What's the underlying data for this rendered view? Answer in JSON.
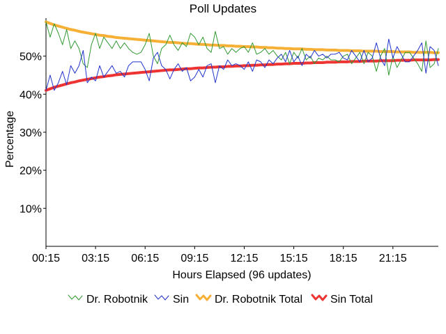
{
  "chart_data": {
    "type": "line",
    "title": "Poll Updates",
    "xlabel": "Hours Elapsed (96 updates)",
    "ylabel": "Percentage",
    "ylim": [
      0,
      60
    ],
    "yticks": [
      10,
      20,
      30,
      40,
      50
    ],
    "ytick_labels": [
      "10%",
      "20%",
      "30%",
      "40%",
      "50%"
    ],
    "xticks": [
      0,
      12,
      24,
      36,
      48,
      60,
      72,
      84
    ],
    "xtick_labels": [
      "00:15",
      "03:15",
      "06:15",
      "09:15",
      "12:15",
      "15:15",
      "18:15",
      "21:15"
    ],
    "xlim": [
      0,
      95
    ],
    "grid": false,
    "legend_position": "bottom",
    "series": [
      {
        "name": "Dr. Robotnik",
        "color": "#339933",
        "style": "thin",
        "values": [
          59.0,
          55.0,
          58.5,
          56.0,
          53.0,
          57.0,
          52.0,
          54.0,
          52.0,
          48.0,
          47.0,
          53.0,
          56.0,
          52.0,
          55.0,
          53.5,
          52.0,
          54.0,
          52.0,
          53.5,
          52.0,
          51.0,
          50.5,
          51.0,
          53.0,
          56.0,
          50.0,
          48.0,
          52.0,
          53.0,
          55.5,
          53.0,
          51.5,
          53.5,
          52.5,
          56.0,
          55.0,
          53.0,
          55.0,
          52.0,
          51.0,
          56.5,
          52.0,
          52.5,
          50.5,
          52.0,
          51.0,
          52.0,
          52.5,
          51.0,
          53.5,
          50.5,
          51.0,
          52.0,
          50.5,
          51.5,
          50.0,
          49.0,
          51.0,
          48.0,
          51.0,
          49.5,
          52.0,
          49.0,
          50.0,
          48.0,
          49.5,
          49.0,
          50.0,
          49.0,
          49.0,
          48.5,
          50.0,
          50.5,
          48.0,
          49.5,
          51.0,
          48.0,
          51.0,
          50.0,
          46.0,
          50.0,
          52.0,
          45.0,
          50.0,
          47.0,
          49.0,
          51.0,
          51.0,
          49.5,
          48.0,
          46.0,
          54.0,
          47.0,
          48.0,
          52.0
        ]
      },
      {
        "name": "Sin",
        "color": "#2233cc",
        "style": "thin",
        "values": [
          41.0,
          45.0,
          41.0,
          43.0,
          46.0,
          42.5,
          47.5,
          45.5,
          47.5,
          51.5,
          43.0,
          44.5,
          43.5,
          47.5,
          44.5,
          46.0,
          47.5,
          45.5,
          46.0,
          44.5,
          47.5,
          48.5,
          48.5,
          48.5,
          46.5,
          43.5,
          49.5,
          51.0,
          47.5,
          46.5,
          44.0,
          46.5,
          48.0,
          46.0,
          47.0,
          43.5,
          44.5,
          46.5,
          44.5,
          47.5,
          48.0,
          43.0,
          47.5,
          46.5,
          49.0,
          47.5,
          48.0,
          47.5,
          46.5,
          48.5,
          46.0,
          49.0,
          48.5,
          47.0,
          49.0,
          48.0,
          49.5,
          50.5,
          48.5,
          51.5,
          48.5,
          50.0,
          47.5,
          50.5,
          49.5,
          51.5,
          50.0,
          50.5,
          49.5,
          50.5,
          50.5,
          51.0,
          49.5,
          49.0,
          51.5,
          50.0,
          48.5,
          51.5,
          48.5,
          49.5,
          53.5,
          49.5,
          47.5,
          54.5,
          49.5,
          52.5,
          50.5,
          48.5,
          48.5,
          50.0,
          51.5,
          53.5,
          45.5,
          52.5,
          51.5,
          47.5
        ]
      },
      {
        "name": "Dr. Robotnik Total",
        "color": "#f5b035",
        "style": "thick",
        "values": [
          59.0,
          58.6,
          58.2,
          57.9,
          57.6,
          57.3,
          57.0,
          56.8,
          56.5,
          56.3,
          56.1,
          55.9,
          55.7,
          55.5,
          55.4,
          55.2,
          55.1,
          54.9,
          54.8,
          54.7,
          54.6,
          54.5,
          54.4,
          54.3,
          54.2,
          54.1,
          54.0,
          53.9,
          53.8,
          53.7,
          53.6,
          53.6,
          53.5,
          53.4,
          53.3,
          53.3,
          53.2,
          53.1,
          53.1,
          53.0,
          52.9,
          52.9,
          52.8,
          52.8,
          52.7,
          52.7,
          52.6,
          52.6,
          52.5,
          52.5,
          52.4,
          52.4,
          52.3,
          52.3,
          52.2,
          52.2,
          52.1,
          52.1,
          52.0,
          52.0,
          51.9,
          51.9,
          51.9,
          51.8,
          51.8,
          51.7,
          51.7,
          51.7,
          51.6,
          51.6,
          51.6,
          51.5,
          51.5,
          51.5,
          51.4,
          51.4,
          51.4,
          51.3,
          51.3,
          51.3,
          51.3,
          51.2,
          51.2,
          51.2,
          51.2,
          51.1,
          51.1,
          51.1,
          51.1,
          51.0,
          51.0,
          51.0,
          51.0,
          51.0,
          50.9,
          50.9
        ]
      },
      {
        "name": "Sin Total",
        "color": "#ee3333",
        "style": "thick",
        "values": [
          41.0,
          41.4,
          41.8,
          42.1,
          42.4,
          42.7,
          43.0,
          43.2,
          43.5,
          43.7,
          43.9,
          44.1,
          44.3,
          44.5,
          44.6,
          44.8,
          44.9,
          45.1,
          45.2,
          45.3,
          45.4,
          45.5,
          45.6,
          45.7,
          45.8,
          45.9,
          46.0,
          46.1,
          46.2,
          46.3,
          46.4,
          46.4,
          46.5,
          46.6,
          46.7,
          46.7,
          46.8,
          46.9,
          46.9,
          47.0,
          47.1,
          47.1,
          47.2,
          47.2,
          47.3,
          47.3,
          47.4,
          47.4,
          47.5,
          47.5,
          47.6,
          47.6,
          47.7,
          47.7,
          47.8,
          47.8,
          47.9,
          47.9,
          48.0,
          48.0,
          48.1,
          48.1,
          48.1,
          48.2,
          48.2,
          48.3,
          48.3,
          48.3,
          48.4,
          48.4,
          48.4,
          48.5,
          48.5,
          48.5,
          48.6,
          48.6,
          48.6,
          48.7,
          48.7,
          48.7,
          48.7,
          48.8,
          48.8,
          48.8,
          48.8,
          48.9,
          48.9,
          48.9,
          48.9,
          49.0,
          49.0,
          49.0,
          49.0,
          49.0,
          49.1,
          49.1
        ]
      }
    ]
  }
}
